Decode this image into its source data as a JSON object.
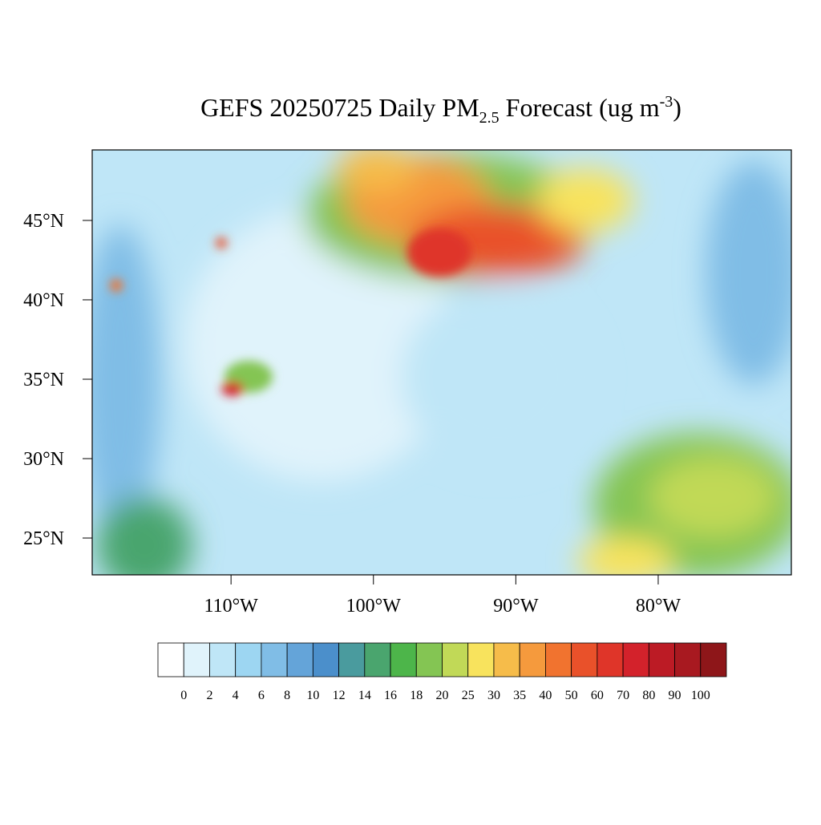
{
  "map": {
    "title": {
      "prefix": "GEFS 20250725 Daily PM",
      "subscript": "2.5",
      "middle": " Forecast (ug m",
      "superscript": "-3",
      "suffix": ")"
    },
    "lonlim": [
      -119.75,
      -70.65
    ],
    "latlim": [
      22.68,
      49.44
    ],
    "lon_ticks": [
      {
        "value": -110,
        "label": "110°W"
      },
      {
        "value": -100,
        "label": "100°W"
      },
      {
        "value": -90,
        "label": "90°W"
      },
      {
        "value": -80,
        "label": "80°W"
      }
    ],
    "lat_ticks": [
      {
        "value": 45,
        "label": "45°N"
      },
      {
        "value": 40,
        "label": "40°N"
      },
      {
        "value": 35,
        "label": "35°N"
      },
      {
        "value": 30,
        "label": "30°N"
      },
      {
        "value": 25,
        "label": "25°N"
      }
    ],
    "colorbar": {
      "levels": [
        0,
        2,
        4,
        6,
        8,
        10,
        12,
        14,
        16,
        18,
        20,
        25,
        30,
        35,
        40,
        50,
        60,
        70,
        80,
        90,
        100
      ],
      "colors": [
        "#ffffff",
        "#e0f3fb",
        "#bfe6f7",
        "#9dd6f2",
        "#80bde6",
        "#64a4d9",
        "#4b8fcb",
        "#4a9b9e",
        "#4aa56e",
        "#4db54a",
        "#84c553",
        "#c1d957",
        "#f8e35d",
        "#f6bc4a",
        "#f59a3d",
        "#f1732f",
        "#e9512a",
        "#df3529",
        "#d3222b",
        "#bc1b25",
        "#a81920",
        "#8e1619"
      ]
    }
  }
}
